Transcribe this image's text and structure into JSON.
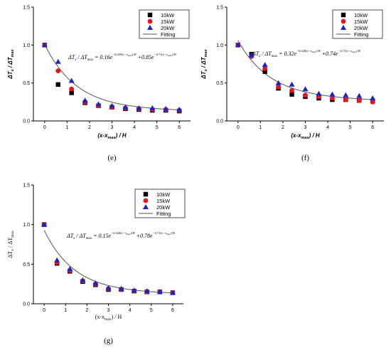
{
  "colors": {
    "s10": "#000000",
    "s15": "#e8141b",
    "s20": "#1a22c8",
    "fit": "#555555"
  },
  "chart_data": [
    {
      "panel": "(e)",
      "type": "scatter",
      "xlabel": "(x-x",
      "xlabel_sub": "max",
      "xlabel_tail": ") / H",
      "ylabel": "ΔT",
      "ylabel_sub": "x",
      "ylabel_mid": " / ΔT",
      "ylabel_sub2": "max",
      "xlim": [
        -0.5,
        6.5
      ],
      "ylim": [
        0.0,
        1.5
      ],
      "xticks": [
        "0",
        "1",
        "2",
        "3",
        "4",
        "5",
        "6"
      ],
      "yticks": [
        "0.0",
        "0.5",
        "1.0",
        "1.5"
      ],
      "legend_position": "top-right",
      "equation": {
        "lhs": "ΔT",
        "lhs_sub": "x",
        "mid": " / ΔT",
        "mid_sub": "max",
        "eq": " = 0.16e",
        "exp1": "−0.029(x−x",
        "exp1_sub": "max",
        "exp1_tail": ")/H",
        "plus": " +0.85e",
        "exp2": "−0.71(x−x",
        "exp2_sub": "max",
        "exp2_tail": ")/H"
      },
      "x": [
        0,
        0.6,
        1.2,
        1.8,
        2.4,
        3.0,
        3.6,
        4.2,
        4.8,
        5.4,
        6.0
      ],
      "series": [
        {
          "name": "10kW",
          "marker": "square",
          "color": "#000000",
          "values": [
            1.0,
            0.48,
            0.37,
            0.24,
            0.2,
            0.18,
            0.16,
            0.15,
            0.14,
            0.14,
            0.13
          ]
        },
        {
          "name": "15kW",
          "marker": "circle",
          "color": "#e8141b",
          "values": [
            1.0,
            0.66,
            0.42,
            0.25,
            0.2,
            0.18,
            0.17,
            0.16,
            0.15,
            0.15,
            0.14
          ]
        },
        {
          "name": "20kW",
          "marker": "triangle",
          "color": "#1a22c8",
          "values": [
            1.0,
            0.78,
            0.53,
            0.27,
            0.22,
            0.2,
            0.18,
            0.17,
            0.17,
            0.16,
            0.15
          ]
        }
      ],
      "fit": {
        "name": "Fitting",
        "a": 0.16,
        "b": 0.029,
        "c": 0.85,
        "d": 0.71
      }
    },
    {
      "panel": "(f)",
      "type": "scatter",
      "xlabel": "(x-x",
      "xlabel_sub": "max",
      "xlabel_tail": ") / H",
      "ylabel": "ΔT",
      "ylabel_sub": "x",
      "ylabel_mid": " / ΔT",
      "ylabel_sub2": "max",
      "xlim": [
        -0.5,
        6.5
      ],
      "ylim": [
        0.0,
        1.5
      ],
      "xticks": [
        "0",
        "1",
        "2",
        "3",
        "4",
        "5",
        "6"
      ],
      "yticks": [
        "0.0",
        "0.5",
        "1.0",
        "1.5"
      ],
      "legend_position": "top-right",
      "equation": {
        "lhs": "ΔT",
        "lhs_sub": "x",
        "mid": " / ΔT",
        "mid_sub": "max",
        "eq": " = 0.32e",
        "exp1": "−0.028(x−x",
        "exp1_sub": "max",
        "exp1_tail": ")/H",
        "plus": " +0.74e",
        "exp2": "−0.71(x−x",
        "exp2_sub": "max",
        "exp2_tail": ")/H"
      },
      "x": [
        0,
        0.6,
        1.2,
        1.8,
        2.4,
        3.0,
        3.6,
        4.2,
        4.8,
        5.4,
        6.0
      ],
      "series": [
        {
          "name": "10kW",
          "marker": "square",
          "color": "#000000",
          "values": [
            1.0,
            0.88,
            0.65,
            0.43,
            0.35,
            0.32,
            0.3,
            0.28,
            0.28,
            0.27,
            0.26
          ]
        },
        {
          "name": "15kW",
          "marker": "circle",
          "color": "#e8141b",
          "values": [
            1.0,
            0.85,
            0.69,
            0.45,
            0.4,
            0.34,
            0.32,
            0.3,
            0.28,
            0.27,
            0.25
          ]
        },
        {
          "name": "20kW",
          "marker": "triangle",
          "color": "#1a22c8",
          "values": [
            1.0,
            0.87,
            0.74,
            0.5,
            0.48,
            0.42,
            0.36,
            0.35,
            0.34,
            0.33,
            0.3
          ]
        }
      ],
      "fit": {
        "name": "Fitting",
        "a": 0.32,
        "b": 0.028,
        "c": 0.74,
        "d": 0.71
      }
    },
    {
      "panel": "(g)",
      "type": "scatter",
      "xlabel": "(x-x",
      "xlabel_sub": "max",
      "xlabel_tail": ") / H",
      "ylabel": "ΔT",
      "ylabel_sub": "x",
      "ylabel_mid": " / ΔT",
      "ylabel_sub2": "max",
      "xlim": [
        -0.5,
        6.5
      ],
      "ylim": [
        0.0,
        1.5
      ],
      "xticks": [
        "0",
        "1",
        "2",
        "3",
        "4",
        "5",
        "6"
      ],
      "yticks": [
        "0.0",
        "0.5",
        "1.0",
        "1.5"
      ],
      "legend_position": "top-right",
      "equation": {
        "lhs": "ΔT",
        "lhs_sub": "x",
        "mid": " / ΔT",
        "mid_sub": "max",
        "eq": " = 0.15e",
        "exp1": "−0.028(x−x",
        "exp1_sub": "max",
        "exp1_tail": ")/H",
        "plus": " +0.78e",
        "exp2": "−0.71(x−x",
        "exp2_sub": "max",
        "exp2_tail": ")/H"
      },
      "x": [
        0,
        0.6,
        1.2,
        1.8,
        2.4,
        3.0,
        3.6,
        4.2,
        4.8,
        5.4,
        6.0
      ],
      "series": [
        {
          "name": "10kW",
          "marker": "square",
          "color": "#000000",
          "values": [
            1.0,
            0.51,
            0.41,
            0.28,
            0.24,
            0.18,
            0.18,
            0.16,
            0.15,
            0.15,
            0.14
          ]
        },
        {
          "name": "15kW",
          "marker": "circle",
          "color": "#e8141b",
          "values": [
            1.0,
            0.52,
            0.42,
            0.29,
            0.25,
            0.19,
            0.18,
            0.16,
            0.15,
            0.15,
            0.14
          ]
        },
        {
          "name": "20kW",
          "marker": "triangle",
          "color": "#1a22c8",
          "values": [
            1.0,
            0.55,
            0.44,
            0.3,
            0.26,
            0.2,
            0.19,
            0.17,
            0.16,
            0.15,
            0.14
          ]
        }
      ],
      "fit": {
        "name": "Fitting",
        "a": 0.15,
        "b": 0.028,
        "c": 0.78,
        "d": 0.71
      }
    }
  ]
}
